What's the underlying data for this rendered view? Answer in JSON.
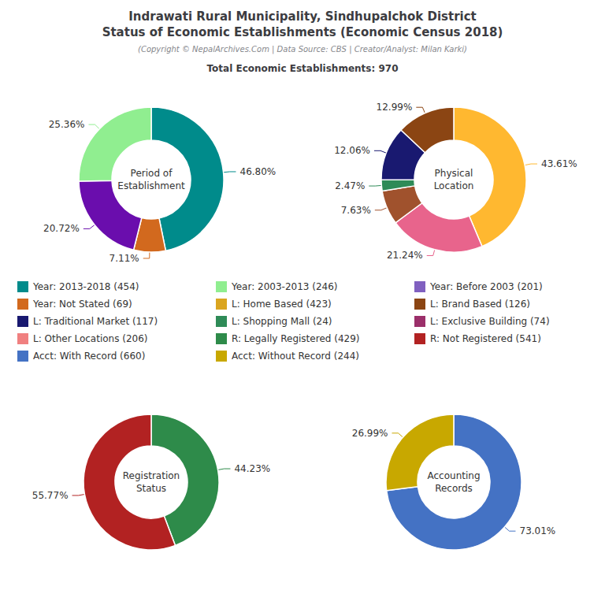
{
  "title": "Indrawati Rural Municipality, Sindhupalchok District\nStatus of Economic Establishments (Economic Census 2018)",
  "subtitle": "(Copyright © NepalArchives.Com | Data Source: CBS | Creator/Analyst: Milan Karki)",
  "annotations": [
    "Total Economic Establishments: 970"
  ],
  "legend_items": [
    {
      "label": "Year: 2013-2018 (454)",
      "color": "#008B8B"
    },
    {
      "label": "Year: 2003-2013 (246)",
      "color": "#90EE90"
    },
    {
      "label": "Year: Before 2003 (201)",
      "color": "#8060C0"
    },
    {
      "label": "Year: Not Stated (69)",
      "color": "#D2691E"
    },
    {
      "label": "L: Home Based (423)",
      "color": "#DAA520"
    },
    {
      "label": "L: Brand Based (126)",
      "color": "#8B4513"
    },
    {
      "label": "L: Traditional Market (117)",
      "color": "#191970"
    },
    {
      "label": "L: Shopping Mall (24)",
      "color": "#2E8B57"
    },
    {
      "label": "L: Exclusive Building (74)",
      "color": "#9B2F6A"
    },
    {
      "label": "L: Other Locations (206)",
      "color": "#F08080"
    },
    {
      "label": "R: Legally Registered (429)",
      "color": "#2E8B4A"
    },
    {
      "label": "R: Not Registered (541)",
      "color": "#B22222"
    },
    {
      "label": "Acct: With Record (660)",
      "color": "#4472C4"
    },
    {
      "label": "Acct: Without Record (244)",
      "color": "#C8A800"
    }
  ],
  "chart_data": [
    {
      "type": "pie",
      "title": "Period of\nEstablishment",
      "values": [
        46.8,
        7.11,
        20.72,
        25.36
      ],
      "value_labels": [
        "46.80%",
        "7.11%",
        "20.72%",
        "25.36%"
      ],
      "colors": [
        "#008B8B",
        "#D2691E",
        "#6A0DAD",
        "#90EE90"
      ],
      "data_labels": true
    },
    {
      "type": "pie",
      "title": "Physical\nLocation",
      "values": [
        43.61,
        21.24,
        7.63,
        2.47,
        12.06,
        12.99
      ],
      "value_labels": [
        "43.61%",
        "21.24%",
        "7.63%",
        "2.47%",
        "12.06%",
        "12.99%"
      ],
      "colors": [
        "#FFB830",
        "#E8648C",
        "#A0522D",
        "#2E8B57",
        "#191970",
        "#8B4513"
      ],
      "data_labels": true
    },
    {
      "type": "pie",
      "title": "Registration\nStatus",
      "values": [
        44.23,
        55.77
      ],
      "value_labels": [
        "44.23%",
        "55.77%"
      ],
      "colors": [
        "#2E8B4A",
        "#B22222"
      ],
      "data_labels": true
    },
    {
      "type": "pie",
      "title": "Accounting\nRecords",
      "values": [
        73.01,
        26.99
      ],
      "value_labels": [
        "73.01%",
        "26.99%"
      ],
      "colors": [
        "#4472C4",
        "#C8A800"
      ],
      "data_labels": true
    }
  ]
}
